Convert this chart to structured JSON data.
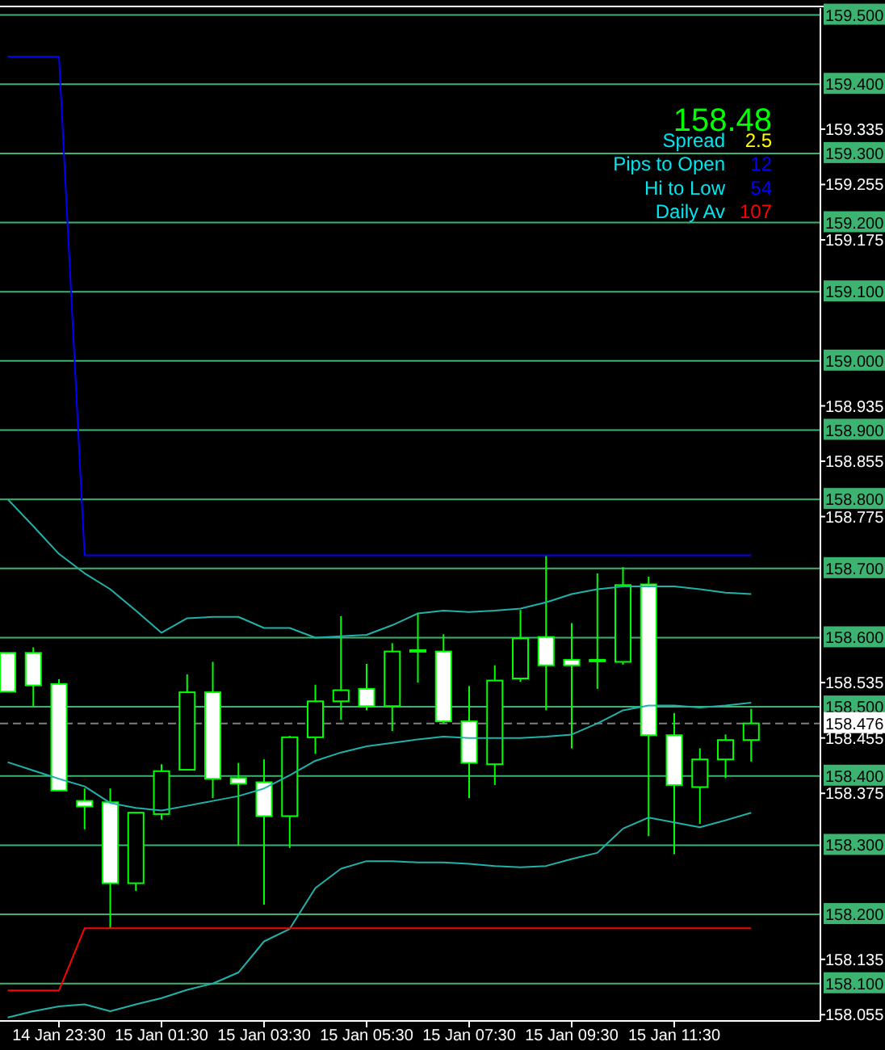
{
  "chart_data": {
    "type": "candlestick",
    "categories": [
      null,
      null,
      "14 Jan 23:30",
      null,
      null,
      null,
      "15 Jan 01:30",
      null,
      null,
      null,
      "15 Jan 03:30",
      null,
      null,
      null,
      "15 Jan 05:30",
      null,
      null,
      null,
      "15 Jan 07:30",
      null,
      null,
      null,
      "15 Jan 09:30",
      null,
      null,
      null,
      "15 Jan 11:30",
      null,
      null,
      null
    ],
    "ohlc": [
      [
        158.578,
        158.578,
        158.522,
        158.522
      ],
      [
        158.578,
        158.586,
        158.5,
        158.531
      ],
      [
        158.533,
        158.54,
        158.379,
        158.379
      ],
      [
        158.364,
        158.382,
        158.323,
        158.356
      ],
      [
        158.362,
        158.382,
        158.18,
        158.245
      ],
      [
        158.245,
        158.347,
        158.234,
        158.347
      ],
      [
        158.345,
        158.417,
        158.337,
        158.407
      ],
      [
        158.409,
        158.547,
        158.409,
        158.521
      ],
      [
        158.521,
        158.565,
        158.368,
        158.396
      ],
      [
        158.397,
        158.419,
        158.3,
        158.389
      ],
      [
        158.391,
        158.424,
        158.214,
        158.342
      ],
      [
        158.342,
        158.458,
        158.296,
        158.456
      ],
      [
        158.456,
        158.532,
        158.432,
        158.508
      ],
      [
        158.508,
        158.631,
        158.481,
        158.524
      ],
      [
        158.526,
        158.562,
        158.495,
        158.501
      ],
      [
        158.501,
        158.592,
        158.465,
        158.58
      ],
      [
        158.582,
        158.636,
        158.535,
        158.582
      ],
      [
        158.58,
        158.605,
        158.476,
        158.479
      ],
      [
        158.479,
        158.53,
        158.368,
        158.419
      ],
      [
        158.417,
        158.56,
        158.387,
        158.538
      ],
      [
        158.541,
        158.64,
        158.536,
        158.599
      ],
      [
        158.601,
        158.719,
        158.495,
        158.56
      ],
      [
        158.568,
        158.621,
        158.44,
        158.56
      ],
      [
        158.568,
        158.693,
        158.526,
        158.568
      ],
      [
        158.565,
        158.702,
        158.561,
        158.676
      ],
      [
        158.677,
        158.688,
        158.313,
        158.459
      ],
      [
        158.459,
        158.491,
        158.287,
        158.387
      ],
      [
        158.384,
        158.44,
        158.331,
        158.424
      ],
      [
        158.424,
        158.46,
        158.397,
        158.452
      ],
      [
        158.452,
        158.497,
        158.421,
        158.476
      ]
    ],
    "series": [
      {
        "type": "line",
        "color": "#20b2aa",
        "values": [
          158.8,
          158.761,
          158.721,
          158.693,
          158.67,
          158.639,
          158.607,
          158.628,
          158.63,
          158.63,
          158.614,
          158.614,
          158.6,
          158.602,
          158.604,
          158.618,
          158.635,
          158.639,
          158.637,
          158.639,
          158.642,
          158.651,
          158.663,
          158.67,
          158.674,
          158.674,
          158.674,
          158.67,
          158.665,
          158.663
        ]
      },
      {
        "type": "line",
        "color": "#20b2aa",
        "values": [
          158.42,
          158.408,
          158.396,
          158.385,
          158.361,
          158.354,
          158.35,
          158.357,
          158.364,
          158.371,
          158.382,
          158.401,
          158.422,
          158.434,
          158.443,
          158.448,
          158.453,
          158.457,
          158.455,
          158.455,
          158.455,
          158.457,
          158.46,
          158.476,
          158.495,
          158.502,
          158.502,
          158.499,
          158.502,
          158.506
        ]
      },
      {
        "type": "line",
        "color": "#20b2aa",
        "values": [
          158.051,
          158.06,
          158.067,
          158.07,
          158.06,
          158.07,
          158.079,
          158.091,
          158.1,
          158.116,
          158.161,
          158.179,
          158.238,
          158.266,
          158.277,
          158.277,
          158.275,
          158.275,
          158.273,
          158.27,
          158.268,
          158.27,
          158.28,
          158.289,
          158.324,
          158.34,
          158.333,
          158.326,
          158.336,
          158.347
        ]
      },
      {
        "type": "line",
        "color": "#0000ff",
        "values": [
          159.44,
          159.44,
          159.44,
          158.719,
          158.719,
          158.719,
          158.719,
          158.719,
          158.719,
          158.719,
          158.719,
          158.719,
          158.719,
          158.719,
          158.719,
          158.719,
          158.719,
          158.719,
          158.719,
          158.719,
          158.719,
          158.719,
          158.719,
          158.719,
          158.719,
          158.719,
          158.719,
          158.719,
          158.719,
          158.719
        ]
      },
      {
        "type": "line",
        "color": "#ff0000",
        "values": [
          158.09,
          158.09,
          158.09,
          158.18,
          158.18,
          158.18,
          158.18,
          158.18,
          158.18,
          158.18,
          158.18,
          158.18,
          158.18,
          158.18,
          158.18,
          158.18,
          158.18,
          158.18,
          158.18,
          158.18,
          158.18,
          158.18,
          158.18,
          158.18,
          158.18,
          158.18,
          158.18,
          158.18,
          158.18,
          158.18
        ]
      }
    ],
    "ylim": [
      158.046,
      159.51
    ],
    "yticks": [
      159.335,
      159.255,
      159.175,
      158.935,
      158.855,
      158.775,
      158.535,
      158.455,
      158.375,
      158.135,
      158.055
    ],
    "ref_lines": [
      {
        "axis": "y",
        "value": 159.5,
        "label": "159.500",
        "color": "#3cb371"
      },
      {
        "axis": "y",
        "value": 159.4,
        "label": "159.400",
        "color": "#3cb371"
      },
      {
        "axis": "y",
        "value": 159.3,
        "label": "159.300",
        "color": "#3cb371"
      },
      {
        "axis": "y",
        "value": 159.2,
        "label": "159.200",
        "color": "#3cb371"
      },
      {
        "axis": "y",
        "value": 159.1,
        "label": "159.100",
        "color": "#3cb371"
      },
      {
        "axis": "y",
        "value": 159.0,
        "label": "159.000",
        "color": "#3cb371"
      },
      {
        "axis": "y",
        "value": 158.9,
        "label": "158.900",
        "color": "#3cb371"
      },
      {
        "axis": "y",
        "value": 158.8,
        "label": "158.800",
        "color": "#3cb371"
      },
      {
        "axis": "y",
        "value": 158.7,
        "label": "158.700",
        "color": "#3cb371"
      },
      {
        "axis": "y",
        "value": 158.6,
        "label": "158.600",
        "color": "#3cb371"
      },
      {
        "axis": "y",
        "value": 158.5,
        "label": "158.500",
        "color": "#3cb371"
      },
      {
        "axis": "y",
        "value": 158.4,
        "label": "158.400",
        "color": "#3cb371"
      },
      {
        "axis": "y",
        "value": 158.3,
        "label": "158.300",
        "color": "#3cb371"
      },
      {
        "axis": "y",
        "value": 158.2,
        "label": "158.200",
        "color": "#3cb371"
      },
      {
        "axis": "y",
        "value": 158.1,
        "label": "158.100",
        "color": "#3cb371"
      },
      {
        "axis": "y",
        "value": 158.476,
        "label": "158.476",
        "color": "#808080",
        "line_style": "dashed"
      }
    ],
    "annotations": [
      "158.48",
      "Spread",
      "2.5",
      "Pips to Open",
      "12",
      "Hi to Low",
      "54",
      "Daily Av",
      "107"
    ],
    "grid": false
  }
}
